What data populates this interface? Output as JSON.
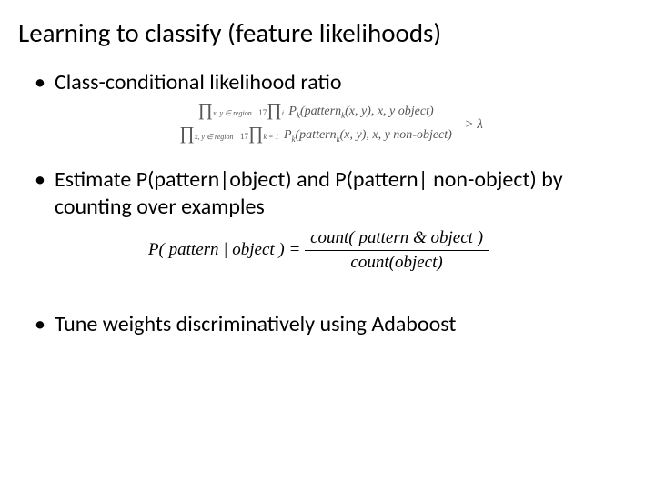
{
  "title": "Learning to classify (feature likelihoods)",
  "bullets": {
    "b1": "Class-conditional likelihood ratio",
    "b2": "Estimate P(pattern|object) and P(pattern| non-object) by counting over examples",
    "b3": "Tune weights discriminatively using Adaboost"
  },
  "eq1": {
    "num_prod1_sub": "x, y ∈ region",
    "num_prod2_top": "17",
    "num_prod2_sub": "i",
    "num_body": "P",
    "num_body_sub": "k",
    "num_body_args": "(pattern",
    "num_body_args_sub": "k",
    "num_body_args2": "(x, y), x, y object)",
    "den_prod1_sub": "x, y ∈ region",
    "den_prod2_top": "17",
    "den_prod2_sub": "k = 1",
    "den_body": "P",
    "den_body_sub": "k",
    "den_body_args": "(pattern",
    "den_body_args_sub": "k",
    "den_body_args2": "(x, y), x, y non-object)",
    "rhs": "> λ"
  },
  "eq2": {
    "lhs": "P( pattern | object ) =",
    "num": "count( pattern & object )",
    "den": "count(object)"
  },
  "style": {
    "bg": "#ffffff",
    "text": "#000000",
    "eq1_text": "#555555",
    "title_fontsize": 29,
    "bullet_fontsize": 24,
    "eq1_fontsize": 14,
    "eq2_fontsize": 19,
    "font_body": "Calibri",
    "font_math": "Times New Roman"
  }
}
